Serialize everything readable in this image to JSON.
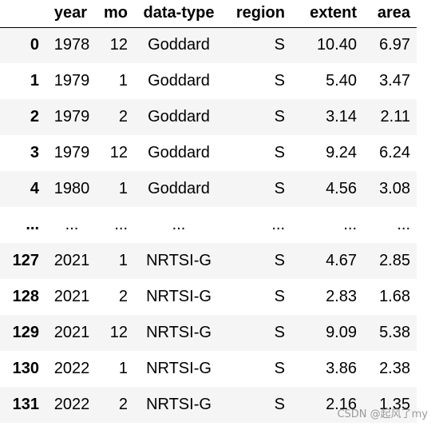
{
  "table": {
    "columns": {
      "index": "",
      "year": "year",
      "mo": "mo",
      "data_type": "data-type",
      "region": "region",
      "extent": "extent",
      "area": "area"
    },
    "rows": [
      {
        "index": "0",
        "year": "1978",
        "mo": "12",
        "data_type": "Goddard",
        "region": "S",
        "extent": "10.40",
        "area": "6.97"
      },
      {
        "index": "1",
        "year": "1979",
        "mo": "1",
        "data_type": "Goddard",
        "region": "S",
        "extent": "5.40",
        "area": "3.47"
      },
      {
        "index": "2",
        "year": "1979",
        "mo": "2",
        "data_type": "Goddard",
        "region": "S",
        "extent": "3.14",
        "area": "2.11"
      },
      {
        "index": "3",
        "year": "1979",
        "mo": "12",
        "data_type": "Goddard",
        "region": "S",
        "extent": "9.24",
        "area": "6.24"
      },
      {
        "index": "4",
        "year": "1980",
        "mo": "1",
        "data_type": "Goddard",
        "region": "S",
        "extent": "4.56",
        "area": "3.08"
      },
      {
        "index": "...",
        "year": "...",
        "mo": "...",
        "data_type": "...",
        "region": "...",
        "extent": "...",
        "area": "..."
      },
      {
        "index": "127",
        "year": "2021",
        "mo": "1",
        "data_type": "NRTSI-G",
        "region": "S",
        "extent": "4.67",
        "area": "2.85"
      },
      {
        "index": "128",
        "year": "2021",
        "mo": "2",
        "data_type": "NRTSI-G",
        "region": "S",
        "extent": "2.83",
        "area": "1.68"
      },
      {
        "index": "129",
        "year": "2021",
        "mo": "12",
        "data_type": "NRTSI-G",
        "region": "S",
        "extent": "9.09",
        "area": "5.38"
      },
      {
        "index": "130",
        "year": "2022",
        "mo": "1",
        "data_type": "NRTSI-G",
        "region": "S",
        "extent": "3.86",
        "area": "2.38"
      },
      {
        "index": "131",
        "year": "2022",
        "mo": "2",
        "data_type": "NRTSI-G",
        "region": "S",
        "extent": "2.16",
        "area": "1.35"
      }
    ]
  },
  "watermark": "CSDN @起风了my",
  "colors": {
    "stripe": "#f5f5f5",
    "header_rule": "#000000",
    "watermark": "#9a9a9a"
  }
}
